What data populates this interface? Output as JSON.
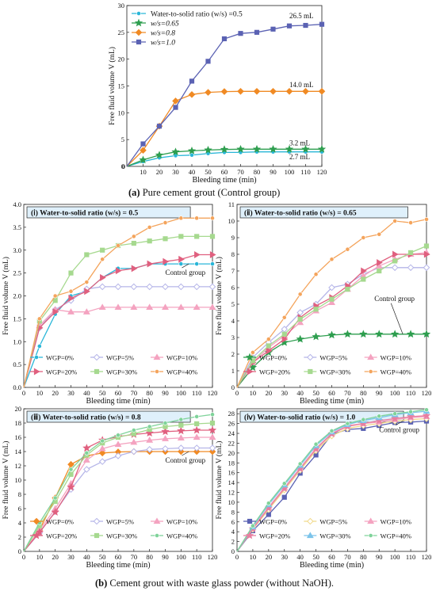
{
  "captions": {
    "a_label": "(a)",
    "a_text": " Pure cement grout (Control group)",
    "b_label": "(b)",
    "b_text": " Cement grout with waste glass powder (without NaOH)."
  },
  "chart_data": [
    {
      "type": "line",
      "title": "",
      "xlabel": "Bleeding time (min)",
      "ylabel": "Free fluid volume V (mL)",
      "xlim": [
        0,
        120
      ],
      "ylim": [
        0,
        30
      ],
      "xticks": [
        10,
        20,
        30,
        40,
        50,
        60,
        70,
        80,
        90,
        100,
        110,
        120
      ],
      "yticks": [
        0,
        5,
        10,
        15,
        20,
        25,
        30
      ],
      "grid": false,
      "legend_position": "top-left",
      "x": [
        0,
        10,
        20,
        30,
        40,
        50,
        60,
        70,
        80,
        90,
        100,
        110,
        120
      ],
      "series": [
        {
          "name": "Water-to-solid ratio (w/s) =0.5",
          "color": "#29b6d8",
          "marker": "circle",
          "values": [
            0,
            0.9,
            1.6,
            2.0,
            2.1,
            2.4,
            2.6,
            2.6,
            2.7,
            2.7,
            2.7,
            2.7,
            2.7
          ]
        },
        {
          "name": "w/s=0.65",
          "color": "#2e9e4f",
          "marker": "star",
          "values": [
            0,
            1.2,
            2.1,
            2.7,
            2.9,
            3.05,
            3.15,
            3.2,
            3.2,
            3.2,
            3.2,
            3.2,
            3.2
          ]
        },
        {
          "name": "w/s=0.8",
          "color": "#f08a24",
          "marker": "diamond",
          "values": [
            0,
            3.0,
            7.5,
            12.2,
            13.4,
            13.8,
            13.95,
            14.0,
            14.0,
            14.0,
            14.0,
            14.0,
            14.0
          ]
        },
        {
          "name": "w/s=1.0",
          "color": "#5b62b3",
          "marker": "square",
          "values": [
            0,
            4.2,
            7.5,
            11.0,
            15.9,
            19.6,
            23.8,
            24.8,
            25.0,
            25.6,
            26.2,
            26.3,
            26.5
          ]
        }
      ],
      "annotations": [
        "26.5 mL",
        "14.0 mL",
        "3.2  mL",
        "2.7 mL"
      ]
    },
    {
      "type": "line",
      "title": "(ⅰ)  Water-to-solid ratio (w/s) = 0.5",
      "xlabel": "Bleeding time (min)",
      "ylabel": "Free fluid volume V (mL)",
      "xlim": [
        0,
        120
      ],
      "ylim": [
        0,
        4.0
      ],
      "xticks": [
        0,
        10,
        20,
        30,
        40,
        50,
        60,
        70,
        80,
        90,
        100,
        110,
        120
      ],
      "yticks": [
        0.0,
        0.5,
        1.0,
        1.5,
        2.0,
        2.5,
        3.0,
        3.5,
        4.0
      ],
      "grid": false,
      "legend_position": "bottom-right",
      "annotation": "Control group",
      "x": [
        0,
        10,
        20,
        30,
        40,
        50,
        60,
        70,
        80,
        90,
        100,
        110,
        120
      ],
      "series": [
        {
          "name": "WGP=0%",
          "color": "#29b6d8",
          "marker": "circle",
          "values": [
            0,
            0.9,
            1.6,
            2.0,
            2.1,
            2.4,
            2.6,
            2.6,
            2.7,
            2.7,
            2.7,
            2.7,
            2.7
          ]
        },
        {
          "name": "WGP=5%",
          "color": "#b5b5e8",
          "marker": "diamond-open",
          "values": [
            0,
            1.3,
            1.7,
            1.9,
            2.15,
            2.2,
            2.2,
            2.2,
            2.2,
            2.2,
            2.2,
            2.2,
            2.2
          ]
        },
        {
          "name": "WGP=10%",
          "color": "#f4a3c0",
          "marker": "triangle",
          "values": [
            0,
            1.35,
            1.7,
            1.65,
            1.65,
            1.75,
            1.75,
            1.75,
            1.75,
            1.75,
            1.75,
            1.75,
            1.75
          ]
        },
        {
          "name": "WGP=20%",
          "color": "#e0607f",
          "marker": "triangle-right",
          "values": [
            0,
            1.3,
            1.65,
            1.95,
            2.1,
            2.4,
            2.55,
            2.6,
            2.7,
            2.75,
            2.8,
            2.9,
            2.9
          ]
        },
        {
          "name": "WGP=30%",
          "color": "#a6d98f",
          "marker": "square",
          "values": [
            0,
            1.45,
            1.9,
            2.5,
            2.9,
            3.0,
            3.1,
            3.15,
            3.2,
            3.25,
            3.3,
            3.3,
            3.3
          ]
        },
        {
          "name": "WGP=40%",
          "color": "#f4a45c",
          "marker": "circle",
          "values": [
            0,
            1.5,
            2.0,
            2.1,
            2.3,
            2.8,
            3.1,
            3.3,
            3.5,
            3.6,
            3.7,
            3.7,
            3.7
          ]
        }
      ]
    },
    {
      "type": "line",
      "title": "(ⅱ)  Water-to-solid ratio (w/s) = 0.65",
      "xlabel": "Bleeding time (min)",
      "ylabel": "Free fluid volume V (mL)",
      "xlim": [
        0,
        120
      ],
      "ylim": [
        0,
        11
      ],
      "xticks": [
        0,
        10,
        20,
        30,
        40,
        50,
        60,
        70,
        80,
        90,
        100,
        110,
        120
      ],
      "yticks": [
        0,
        1,
        2,
        3,
        4,
        5,
        6,
        7,
        8,
        9,
        10,
        11
      ],
      "grid": false,
      "legend_position": "bottom-right",
      "annotation": "Control group",
      "x": [
        0,
        10,
        20,
        30,
        40,
        50,
        60,
        70,
        80,
        90,
        100,
        110,
        120
      ],
      "series": [
        {
          "name": "WGP=0%",
          "color": "#2e9e4f",
          "marker": "star",
          "values": [
            0,
            1.2,
            2.1,
            2.7,
            2.9,
            3.05,
            3.15,
            3.2,
            3.2,
            3.2,
            3.2,
            3.2,
            3.2
          ]
        },
        {
          "name": "WGP=5%",
          "color": "#b5b5e8",
          "marker": "diamond-open",
          "values": [
            0,
            1.8,
            2.7,
            3.5,
            4.5,
            5.0,
            6.0,
            6.2,
            6.8,
            7.2,
            7.2,
            7.2,
            7.2
          ]
        },
        {
          "name": "WGP=10%",
          "color": "#f4a3c0",
          "marker": "triangle",
          "values": [
            0,
            1.5,
            2.4,
            3.1,
            3.9,
            4.6,
            5.1,
            5.9,
            6.7,
            7.3,
            7.7,
            8.0,
            8.1
          ]
        },
        {
          "name": "WGP=20%",
          "color": "#e0607f",
          "marker": "triangle-right",
          "values": [
            0,
            1.5,
            2.2,
            2.9,
            4.2,
            4.9,
            5.4,
            6.1,
            7.0,
            7.5,
            8.0,
            8.0,
            8.0
          ]
        },
        {
          "name": "WGP=30%",
          "color": "#a6d98f",
          "marker": "square",
          "values": [
            0,
            1.6,
            2.5,
            3.2,
            4.1,
            4.7,
            5.3,
            5.9,
            6.5,
            7.0,
            7.6,
            8.1,
            8.5
          ]
        },
        {
          "name": "WGP=40%",
          "color": "#f4a45c",
          "marker": "circle",
          "values": [
            0,
            2.1,
            2.9,
            4.2,
            5.6,
            6.8,
            7.7,
            8.3,
            9.0,
            9.2,
            10.0,
            9.9,
            10.1
          ]
        }
      ]
    },
    {
      "type": "line",
      "title": "(ⅲ)  Water-to-solid ratio (w/s) = 0.8",
      "xlabel": "Bleeding time (min)",
      "ylabel": "Free fluid volume V (mL)",
      "xlim": [
        0,
        120
      ],
      "ylim": [
        0,
        20
      ],
      "xticks": [
        0,
        10,
        20,
        30,
        40,
        50,
        60,
        70,
        80,
        90,
        100,
        110,
        120
      ],
      "yticks": [
        0,
        2,
        4,
        6,
        8,
        10,
        12,
        14,
        16,
        18,
        20
      ],
      "grid": false,
      "legend_position": "bottom-right",
      "annotation": "Control group",
      "x": [
        0,
        10,
        20,
        30,
        40,
        50,
        60,
        70,
        80,
        90,
        100,
        110,
        120
      ],
      "series": [
        {
          "name": "WGP=0%",
          "color": "#f08a24",
          "marker": "diamond",
          "values": [
            0,
            3.0,
            7.5,
            12.2,
            13.4,
            13.8,
            13.95,
            14.0,
            14.0,
            14.0,
            14.0,
            14.0,
            14.0
          ]
        },
        {
          "name": "WGP=5%",
          "color": "#b5b5e8",
          "marker": "diamond-open",
          "values": [
            0,
            2.6,
            5.6,
            8.7,
            11.5,
            12.6,
            13.4,
            14.0,
            14.3,
            14.4,
            14.5,
            14.5,
            14.5
          ]
        },
        {
          "name": "WGP=10%",
          "color": "#f4a3c0",
          "marker": "triangle",
          "values": [
            0,
            3.0,
            6.0,
            9.5,
            12.8,
            14.4,
            15.0,
            15.3,
            15.6,
            15.8,
            15.9,
            16.0,
            16.0
          ]
        },
        {
          "name": "WGP=20%",
          "color": "#e0607f",
          "marker": "star",
          "values": [
            0,
            2.7,
            5.5,
            9.0,
            14.5,
            15.6,
            16.1,
            16.4,
            16.6,
            16.8,
            16.9,
            17.0,
            17.0
          ]
        },
        {
          "name": "WGP=30%",
          "color": "#a6d98f",
          "marker": "square",
          "values": [
            0,
            3.6,
            7.0,
            10.8,
            13.5,
            15.2,
            16.0,
            16.5,
            17.1,
            17.5,
            17.7,
            17.9,
            18.0
          ]
        },
        {
          "name": "WGP=40%",
          "color": "#7fd39a",
          "marker": "circle",
          "values": [
            0,
            4.0,
            7.5,
            11.5,
            13.8,
            15.5,
            16.3,
            17.0,
            17.5,
            18.0,
            18.5,
            18.9,
            19.2
          ]
        }
      ]
    },
    {
      "type": "line",
      "title": "(ⅳ)  Water-to-solid ratio (w/s) = 1.0",
      "xlabel": "Bleeding time (min)",
      "ylabel": "Free fluid volume V (mL)",
      "xlim": [
        0,
        120
      ],
      "ylim": [
        0,
        29
      ],
      "xticks": [
        0,
        10,
        20,
        30,
        40,
        50,
        60,
        70,
        80,
        90,
        100,
        110,
        120
      ],
      "yticks": [
        0,
        2,
        4,
        6,
        8,
        10,
        12,
        14,
        16,
        18,
        20,
        22,
        24,
        26,
        28
      ],
      "grid": false,
      "legend_position": "bottom-right",
      "annotation": "Control group",
      "x": [
        0,
        10,
        20,
        30,
        40,
        50,
        60,
        70,
        80,
        90,
        100,
        110,
        120
      ],
      "series": [
        {
          "name": "WGP=0%",
          "color": "#5b62b3",
          "marker": "square",
          "values": [
            0,
            4.2,
            7.5,
            11.0,
            15.9,
            19.6,
            23.8,
            24.8,
            25.0,
            25.6,
            26.2,
            26.3,
            26.5
          ]
        },
        {
          "name": "WGP=5%",
          "color": "#f1d98a",
          "marker": "diamond-open",
          "values": [
            0,
            4.5,
            8.5,
            12.5,
            16.5,
            20.5,
            23.5,
            25.0,
            25.6,
            26.0,
            26.5,
            26.8,
            27.0
          ]
        },
        {
          "name": "WGP=10%",
          "color": "#f4a3c0",
          "marker": "triangle",
          "values": [
            0,
            4.8,
            9.0,
            13.0,
            17.0,
            21.0,
            24.0,
            25.6,
            26.0,
            26.3,
            26.8,
            27.2,
            27.4
          ]
        },
        {
          "name": "WGP=20%",
          "color": "#e87fa0",
          "marker": "star",
          "values": [
            0,
            4.6,
            8.8,
            12.8,
            16.8,
            20.8,
            23.9,
            25.4,
            26.0,
            26.6,
            27.0,
            27.4,
            27.6
          ]
        },
        {
          "name": "WGP=30%",
          "color": "#7cc4ea",
          "marker": "triangle",
          "values": [
            0,
            5.0,
            9.5,
            13.5,
            17.5,
            21.5,
            24.3,
            25.8,
            26.6,
            27.2,
            27.8,
            28.2,
            28.5
          ]
        },
        {
          "name": "WGP=40%",
          "color": "#7fd39a",
          "marker": "circle",
          "values": [
            0,
            5.2,
            9.8,
            13.8,
            17.8,
            21.8,
            24.5,
            26.0,
            26.8,
            27.5,
            28.0,
            28.4,
            28.8
          ]
        }
      ]
    }
  ]
}
